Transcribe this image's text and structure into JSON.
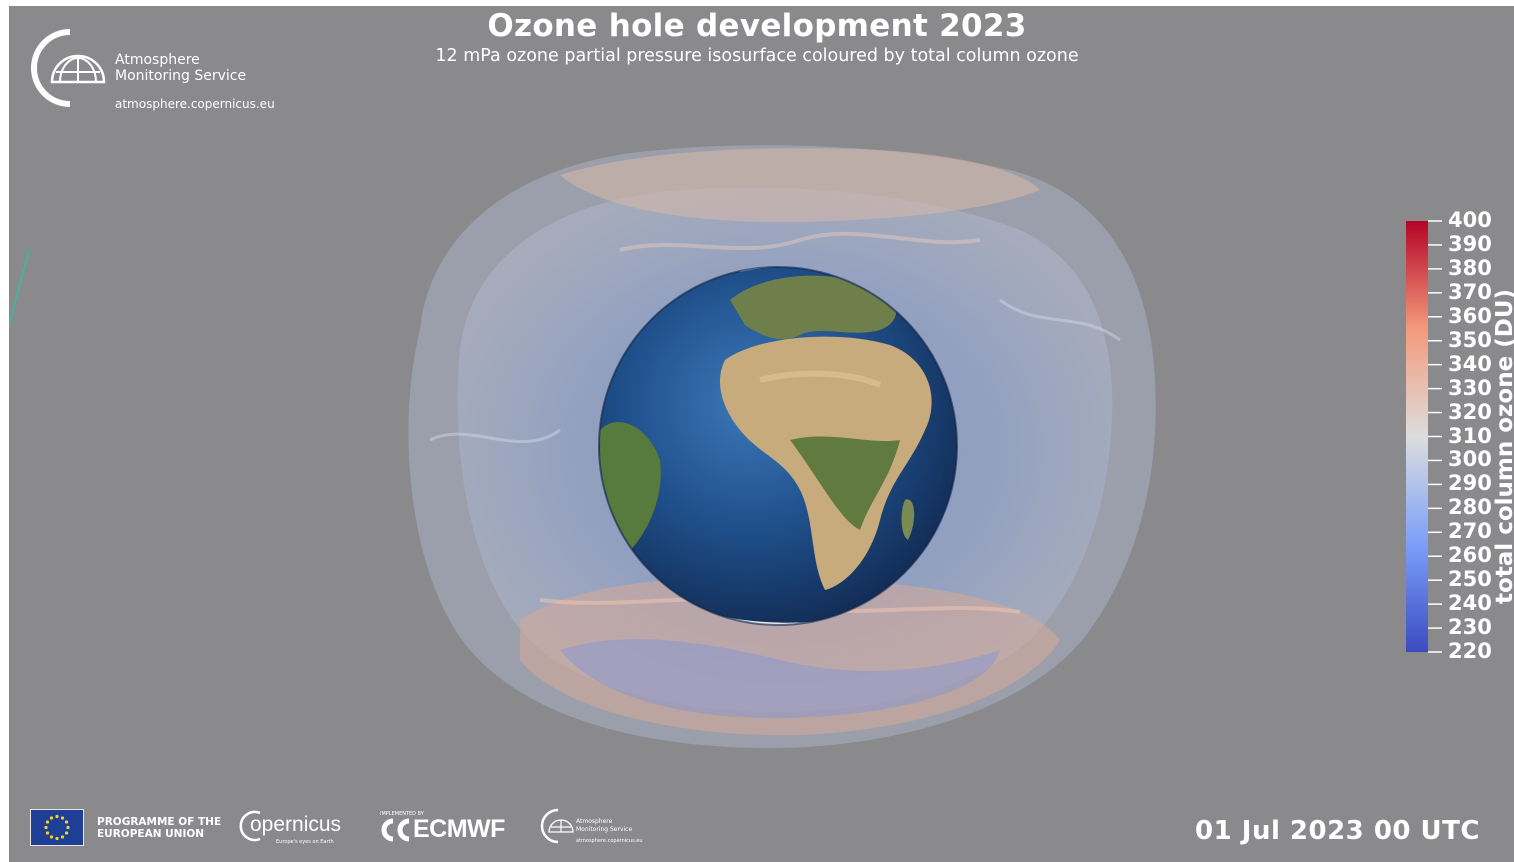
{
  "header": {
    "title": "Ozone hole development 2023",
    "subtitle": "12 mPa ozone partial pressure isosurface coloured by total column ozone"
  },
  "cams_logo": {
    "line1": "Atmosphere",
    "line2": "Monitoring Service",
    "url": "atmosphere.copernicus.eu"
  },
  "colorbar": {
    "title": "total column ozone (DU)",
    "ticks": [
      "400",
      "390",
      "380",
      "370",
      "360",
      "350",
      "340",
      "330",
      "320",
      "310",
      "300",
      "290",
      "280",
      "270",
      "260",
      "250",
      "240",
      "230",
      "220"
    ],
    "min": 220,
    "max": 400,
    "colors": {
      "low": "#3b4cc0",
      "mid": "#dddddd",
      "high": "#b40426"
    }
  },
  "timestamp": "01 Jul 2023 00 UTC",
  "footer": {
    "eu_line1": "PROGRAMME OF THE",
    "eu_line2": "EUROPEAN UNION",
    "copernicus": "opernicus",
    "copernicus_tagline": "Europe's eyes on Earth",
    "ecmwf_prefix": "IMPLEMENTED BY",
    "ecmwf": "ECMWF",
    "ams_line1": "Atmosphere",
    "ams_line2": "Monitoring Service",
    "ams_url": "atmosphere.copernicus.eu"
  },
  "colors": {
    "background": "#8a898c",
    "ocean": "#1f4f8a",
    "land": "#bfa37a"
  }
}
